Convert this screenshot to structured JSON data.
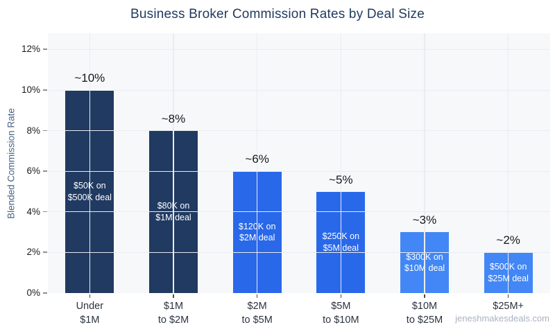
{
  "title": "Business Broker Commission Rates by Deal Size",
  "watermark": "jeneshmakesdeals.com",
  "colors": {
    "title_text": "#1e3a5f",
    "plot_background": "#f7f8fa",
    "gridline": "#e9ecf1",
    "bar_dark_navy": "#203a61",
    "bar_bright_blue": "#2968e9",
    "bar_light_blue": "#4287f5",
    "inner_label_text": "#ffffff",
    "watermark_text": "#a9b3c2"
  },
  "chart_data": {
    "type": "bar",
    "title": "Business Broker Commission Rates by Deal Size",
    "xlabel": "",
    "ylabel": "Blended Commission Rate",
    "ylim": [
      0,
      12.8
    ],
    "grid": true,
    "legend": "none",
    "ytick_values": [
      0,
      2,
      4,
      6,
      8,
      10,
      12
    ],
    "ytick_labels": [
      "0%",
      "2%",
      "4%",
      "6%",
      "8%",
      "10%",
      "12%"
    ],
    "categories": [
      "Under $1M",
      "$1M to $2M",
      "$2M to $5M",
      "$5M to $10M",
      "$10M to $25M",
      "$25M+"
    ],
    "bars": [
      {
        "category_lines": "Under\n$1M",
        "value": 10,
        "value_label": "~10%",
        "inner_label": "$50K on\n$500K deal",
        "color": "#203a61"
      },
      {
        "category_lines": "$1M\nto $2M",
        "value": 8,
        "value_label": "~8%",
        "inner_label": "$80K on\n$1M deal",
        "color": "#203a61"
      },
      {
        "category_lines": "$2M\nto $5M",
        "value": 6,
        "value_label": "~6%",
        "inner_label": "$120K on\n$2M deal",
        "color": "#2968e9"
      },
      {
        "category_lines": "$5M\nto $10M",
        "value": 5,
        "value_label": "~5%",
        "inner_label": "$250K on\n$5M deal",
        "color": "#2968e9"
      },
      {
        "category_lines": "$10M\nto $25M",
        "value": 3,
        "value_label": "~3%",
        "inner_label": "$300K on\n$10M deal",
        "color": "#4287f5"
      },
      {
        "category_lines": "$25M+",
        "value": 2,
        "value_label": "~2%",
        "inner_label": "$500K on\n$25M deal",
        "color": "#4287f5"
      }
    ]
  }
}
